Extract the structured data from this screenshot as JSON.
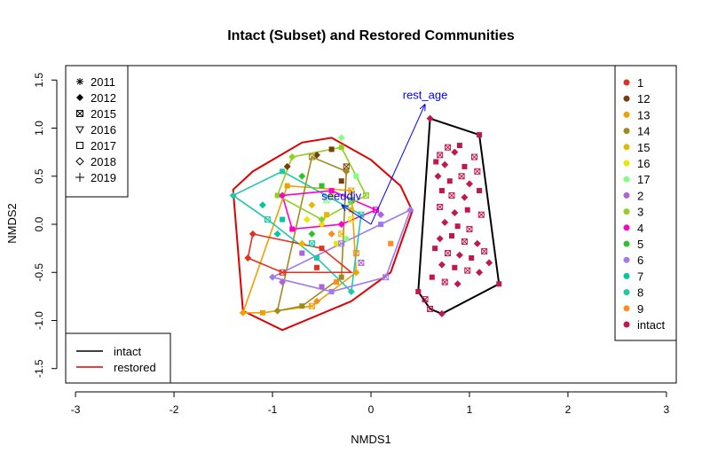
{
  "chart_data": {
    "type": "scatter",
    "title": "Intact (Subset) and Restored Communities",
    "xlabel": "NMDS1",
    "ylabel": "NMDS2",
    "xlim": [
      -3.1,
      3.1
    ],
    "ylim": [
      -1.65,
      1.65
    ],
    "xticks": [
      "-3",
      "-2",
      "-1",
      "0",
      "1",
      "2",
      "3"
    ],
    "yticks": [
      "-1.5",
      "-1.0",
      "-0.5",
      "0.0",
      "0.5",
      "1.0",
      "1.5"
    ],
    "grid": false,
    "year_legend": {
      "position": "top-left",
      "entries": [
        {
          "label": "2011",
          "symbol": "asterisk"
        },
        {
          "label": "2012",
          "symbol": "filled-diamond"
        },
        {
          "label": "2015",
          "symbol": "crossed-square"
        },
        {
          "label": "2016",
          "symbol": "triangle-down"
        },
        {
          "label": "2017",
          "symbol": "square"
        },
        {
          "label": "2018",
          "symbol": "diamond"
        },
        {
          "label": "2019",
          "symbol": "plus"
        }
      ]
    },
    "site_legend": {
      "position": "top-right",
      "entries": [
        {
          "label": "1",
          "color": "#e0321e"
        },
        {
          "label": "12",
          "color": "#7a3c0a"
        },
        {
          "label": "13",
          "color": "#f0a000"
        },
        {
          "label": "14",
          "color": "#a08a1e"
        },
        {
          "label": "15",
          "color": "#e6b800"
        },
        {
          "label": "16",
          "color": "#e8e800"
        },
        {
          "label": "17",
          "color": "#80ff80"
        },
        {
          "label": "2",
          "color": "#b060d8"
        },
        {
          "label": "3",
          "color": "#90d020"
        },
        {
          "label": "4",
          "color": "#ff00c8"
        },
        {
          "label": "5",
          "color": "#30c030"
        },
        {
          "label": "6",
          "color": "#a078f0"
        },
        {
          "label": "7",
          "color": "#00c8a0"
        },
        {
          "label": "8",
          "color": "#20c8a8"
        },
        {
          "label": "9",
          "color": "#ff8c1a"
        },
        {
          "label": "intact",
          "color": "#c0184c"
        }
      ]
    },
    "hull_legend": {
      "position": "bottom-left",
      "entries": [
        {
          "label": "intact",
          "color": "#000000"
        },
        {
          "label": "restored",
          "color": "#e00000"
        }
      ]
    },
    "vectors": [
      {
        "label": "rest_age",
        "x0": 0.0,
        "y0": 0.0,
        "x1": 0.55,
        "y1": 1.25,
        "color": "#0000ff"
      },
      {
        "label": "seeddiv",
        "x0": 0.0,
        "y0": 0.0,
        "x1": -0.3,
        "y1": 0.2,
        "color": "#0000ff"
      }
    ],
    "hulls": [
      {
        "group": "intact",
        "color": "#000000",
        "points": [
          [
            0.6,
            1.1
          ],
          [
            1.1,
            0.93
          ],
          [
            1.3,
            -0.62
          ],
          [
            0.72,
            -0.93
          ],
          [
            0.6,
            -0.88
          ],
          [
            0.48,
            -0.7
          ]
        ]
      },
      {
        "group": "restored",
        "color": "#e00000",
        "points": [
          [
            -1.4,
            0.36
          ],
          [
            -1.2,
            0.55
          ],
          [
            -0.7,
            0.85
          ],
          [
            -0.4,
            0.9
          ],
          [
            0.0,
            0.67
          ],
          [
            0.3,
            0.4
          ],
          [
            0.42,
            0.14
          ],
          [
            0.2,
            -0.5
          ],
          [
            -0.2,
            -0.8
          ],
          [
            -0.9,
            -1.1
          ],
          [
            -1.3,
            -0.9
          ]
        ]
      },
      {
        "group": "13",
        "color": "#f0a000",
        "points": [
          [
            -1.3,
            -0.92
          ],
          [
            -0.85,
            0.4
          ],
          [
            -0.2,
            0.35
          ],
          [
            -0.15,
            -0.5
          ],
          [
            -0.6,
            -0.85
          ],
          [
            -1.1,
            -0.92
          ]
        ]
      },
      {
        "group": "14",
        "color": "#a08a1e",
        "points": [
          [
            -0.95,
            -0.9
          ],
          [
            -0.6,
            0.7
          ],
          [
            -0.25,
            0.55
          ],
          [
            -0.3,
            -0.55
          ],
          [
            -0.7,
            -0.85
          ]
        ]
      },
      {
        "group": "8",
        "color": "#20c8a8",
        "points": [
          [
            -1.4,
            0.3
          ],
          [
            -0.9,
            0.55
          ],
          [
            -0.1,
            0.1
          ],
          [
            -0.2,
            -0.7
          ],
          [
            -0.55,
            -0.35
          ],
          [
            -1.05,
            0.05
          ]
        ]
      },
      {
        "group": "6",
        "color": "#a078f0",
        "points": [
          [
            -1.0,
            -0.55
          ],
          [
            -0.4,
            -0.7
          ],
          [
            0.15,
            -0.55
          ],
          [
            0.4,
            0.15
          ],
          [
            0.1,
            0.0
          ],
          [
            -0.3,
            -0.2
          ]
        ]
      },
      {
        "group": "1",
        "color": "#e0321e",
        "points": [
          [
            -1.2,
            -0.1
          ],
          [
            -0.5,
            -0.25
          ],
          [
            -0.2,
            -0.5
          ],
          [
            -0.9,
            -0.5
          ],
          [
            -1.25,
            -0.35
          ]
        ]
      },
      {
        "group": "4",
        "color": "#ff00c8",
        "points": [
          [
            -0.9,
            0.3
          ],
          [
            -0.4,
            0.35
          ],
          [
            0.05,
            0.15
          ],
          [
            -0.3,
            0.0
          ],
          [
            -0.8,
            -0.05
          ]
        ]
      },
      {
        "group": "3",
        "color": "#90d020",
        "points": [
          [
            -0.8,
            0.7
          ],
          [
            -0.3,
            0.8
          ],
          [
            -0.05,
            0.3
          ],
          [
            -0.5,
            0.05
          ],
          [
            -0.95,
            0.3
          ]
        ]
      }
    ],
    "series": [
      {
        "name": "intact",
        "color": "#c0184c",
        "points": [
          [
            0.6,
            1.1
          ],
          [
            1.1,
            0.93
          ],
          [
            0.78,
            0.8
          ],
          [
            0.85,
            0.75
          ],
          [
            0.9,
            0.82
          ],
          [
            0.7,
            0.72
          ],
          [
            0.75,
            0.62
          ],
          [
            0.95,
            0.6
          ],
          [
            1.05,
            0.7
          ],
          [
            0.68,
            0.5
          ],
          [
            0.8,
            0.45
          ],
          [
            0.92,
            0.5
          ],
          [
            1.0,
            0.42
          ],
          [
            0.72,
            0.35
          ],
          [
            0.82,
            0.3
          ],
          [
            0.95,
            0.28
          ],
          [
            1.1,
            0.35
          ],
          [
            0.7,
            0.18
          ],
          [
            0.85,
            0.12
          ],
          [
            0.98,
            0.15
          ],
          [
            1.12,
            0.1
          ],
          [
            0.75,
            0.02
          ],
          [
            0.88,
            -0.02
          ],
          [
            1.0,
            -0.05
          ],
          [
            0.7,
            -0.15
          ],
          [
            0.82,
            -0.12
          ],
          [
            0.95,
            -0.18
          ],
          [
            1.08,
            -0.2
          ],
          [
            0.65,
            -0.25
          ],
          [
            0.78,
            -0.3
          ],
          [
            0.9,
            -0.32
          ],
          [
            1.02,
            -0.35
          ],
          [
            1.15,
            -0.28
          ],
          [
            0.72,
            -0.42
          ],
          [
            0.85,
            -0.45
          ],
          [
            0.98,
            -0.48
          ],
          [
            1.1,
            -0.5
          ],
          [
            0.62,
            -0.55
          ],
          [
            0.75,
            -0.6
          ],
          [
            0.88,
            -0.62
          ],
          [
            1.3,
            -0.62
          ],
          [
            0.6,
            -0.88
          ],
          [
            0.72,
            -0.93
          ],
          [
            0.48,
            -0.7
          ],
          [
            0.55,
            -0.78
          ],
          [
            1.2,
            -0.4
          ],
          [
            0.66,
            0.65
          ],
          [
            1.08,
            0.55
          ]
        ]
      },
      {
        "name": "1",
        "color": "#e0321e",
        "points": [
          [
            -1.2,
            -0.1
          ],
          [
            -0.5,
            -0.25
          ],
          [
            -0.9,
            -0.5
          ],
          [
            -1.25,
            -0.35
          ],
          [
            -0.55,
            -0.45
          ]
        ]
      },
      {
        "name": "12",
        "color": "#7a3c0a",
        "points": [
          [
            -0.55,
            0.72
          ],
          [
            -0.4,
            0.78
          ],
          [
            -0.25,
            0.6
          ],
          [
            -0.85,
            0.6
          ],
          [
            -0.3,
            0.45
          ]
        ]
      },
      {
        "name": "13",
        "color": "#f0a000",
        "points": [
          [
            -1.3,
            -0.92
          ],
          [
            -1.1,
            -0.92
          ],
          [
            -0.6,
            -0.85
          ],
          [
            -0.15,
            -0.5
          ],
          [
            -0.85,
            0.4
          ],
          [
            -0.2,
            0.35
          ]
        ]
      },
      {
        "name": "14",
        "color": "#a08a1e",
        "points": [
          [
            -0.95,
            -0.9
          ],
          [
            -0.7,
            -0.85
          ],
          [
            -0.6,
            0.7
          ],
          [
            -0.25,
            0.55
          ],
          [
            -0.3,
            -0.55
          ]
        ]
      },
      {
        "name": "15",
        "color": "#e6b800",
        "points": [
          [
            -0.6,
            0.2
          ],
          [
            -0.45,
            0.1
          ],
          [
            -0.3,
            -0.1
          ],
          [
            -0.7,
            -0.2
          ],
          [
            -0.2,
            0.15
          ]
        ]
      },
      {
        "name": "16",
        "color": "#e8e800",
        "points": [
          [
            -0.5,
            0.0
          ],
          [
            -0.35,
            -0.2
          ],
          [
            -0.2,
            0.05
          ],
          [
            -0.65,
            0.05
          ],
          [
            -0.4,
            0.3
          ]
        ]
      },
      {
        "name": "17",
        "color": "#80ff80",
        "points": [
          [
            -0.3,
            0.9
          ],
          [
            -0.15,
            0.5
          ],
          [
            -0.45,
            0.25
          ],
          [
            -0.25,
            -0.15
          ]
        ]
      },
      {
        "name": "2",
        "color": "#b060d8",
        "points": [
          [
            -0.9,
            -0.6
          ],
          [
            -0.5,
            -0.65
          ],
          [
            -0.1,
            -0.4
          ],
          [
            0.1,
            0.1
          ],
          [
            -0.7,
            -0.3
          ]
        ]
      },
      {
        "name": "3",
        "color": "#90d020",
        "points": [
          [
            -0.8,
            0.7
          ],
          [
            -0.3,
            0.8
          ],
          [
            -0.05,
            0.3
          ],
          [
            -0.5,
            0.05
          ],
          [
            -0.95,
            0.3
          ]
        ]
      },
      {
        "name": "4",
        "color": "#ff00c8",
        "points": [
          [
            -0.9,
            0.3
          ],
          [
            -0.4,
            0.35
          ],
          [
            0.05,
            0.15
          ],
          [
            -0.3,
            0.0
          ],
          [
            -0.8,
            -0.05
          ]
        ]
      },
      {
        "name": "5",
        "color": "#30c030",
        "points": [
          [
            -0.7,
            0.5
          ],
          [
            -0.5,
            0.4
          ],
          [
            -0.2,
            0.25
          ],
          [
            -0.6,
            -0.1
          ]
        ]
      },
      {
        "name": "6",
        "color": "#a078f0",
        "points": [
          [
            -1.0,
            -0.55
          ],
          [
            -0.4,
            -0.7
          ],
          [
            0.15,
            -0.55
          ],
          [
            0.4,
            0.15
          ],
          [
            0.1,
            0.0
          ],
          [
            -0.3,
            -0.2
          ]
        ]
      },
      {
        "name": "7",
        "color": "#00c8a0",
        "points": [
          [
            -1.1,
            0.2
          ],
          [
            -0.9,
            0.05
          ],
          [
            -0.6,
            -0.2
          ],
          [
            -0.95,
            -0.1
          ]
        ]
      },
      {
        "name": "8",
        "color": "#20c8a8",
        "points": [
          [
            -1.4,
            0.3
          ],
          [
            -0.9,
            0.55
          ],
          [
            -0.1,
            0.1
          ],
          [
            -0.2,
            -0.7
          ],
          [
            -0.55,
            -0.35
          ],
          [
            -1.05,
            0.05
          ]
        ]
      },
      {
        "name": "9",
        "color": "#ff8c1a",
        "points": [
          [
            -0.55,
            -0.8
          ],
          [
            -0.35,
            -0.6
          ],
          [
            -0.15,
            -0.3
          ],
          [
            -0.4,
            -0.1
          ],
          [
            0.2,
            -0.2
          ]
        ]
      }
    ]
  }
}
